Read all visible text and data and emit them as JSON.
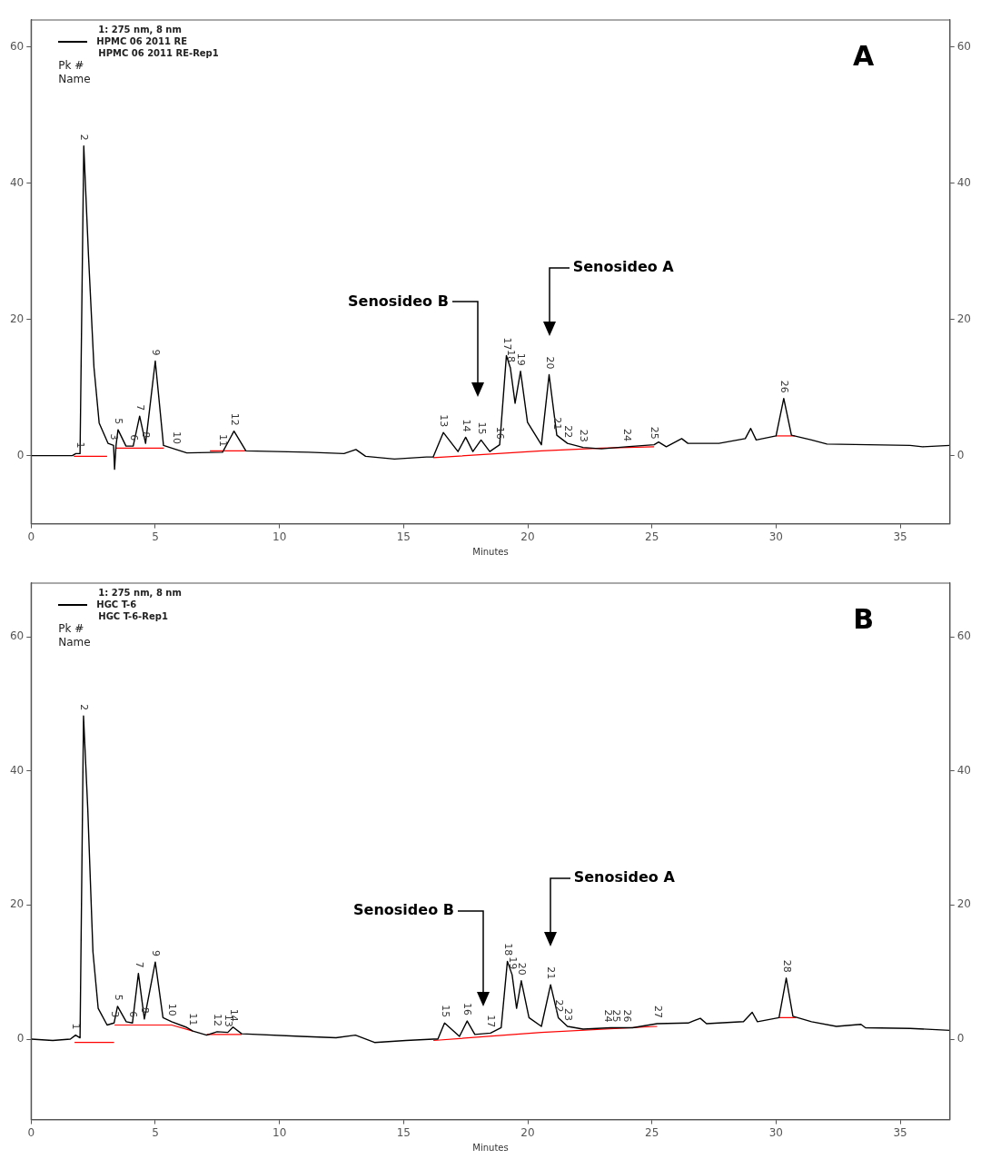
{
  "chart_data": [
    {
      "type": "line",
      "title": "A",
      "xlabel": "Minutes",
      "legend_title": "1: 275 nm, 8 nm",
      "legend": "top left",
      "grid": false,
      "marker": "none",
      "line_style": "solid",
      "xlim": [
        0,
        37
      ],
      "xticks": [
        0,
        5,
        10,
        15,
        20,
        25,
        30,
        35
      ],
      "ylim": [
        -10,
        64
      ],
      "yticks": [
        0,
        20,
        40,
        60
      ],
      "y2lim": [
        -10,
        64
      ],
      "y2ticks": [
        0,
        20,
        40,
        60
      ],
      "annotations": [
        "HPMC 06 2011 RE-Rep1",
        "Pk #",
        "Name",
        {
          "text": "1",
          "x": 1.97,
          "y": 0.3
        },
        {
          "text": "2",
          "x": 2.12,
          "y": 45.5
        },
        {
          "text": "3",
          "x": 3.32,
          "y": 1.5
        },
        {
          "text": "5",
          "x": 3.5,
          "y": 3.8
        },
        {
          "text": "6",
          "x": 4.11,
          "y": 1.4
        },
        {
          "text": "7",
          "x": 4.37,
          "y": 5.8
        },
        {
          "text": "8",
          "x": 4.61,
          "y": 1.8
        },
        {
          "text": "9",
          "x": 5.0,
          "y": 13.9
        },
        {
          "text": "10",
          "x": 5.84,
          "y": 0.9
        },
        {
          "text": "11",
          "x": 7.71,
          "y": 0.5
        },
        {
          "text": "12",
          "x": 8.17,
          "y": 3.6
        },
        {
          "text": "13",
          "x": 16.6,
          "y": 3.4
        },
        {
          "text": "14",
          "x": 17.5,
          "y": 2.7
        },
        {
          "text": "15",
          "x": 18.12,
          "y": 2.3
        },
        {
          "text": "16",
          "x": 18.87,
          "y": 1.6
        },
        {
          "text": "17",
          "x": 19.14,
          "y": 14.7
        },
        {
          "text": "18",
          "x": 19.3,
          "y": 12.9
        },
        {
          "text": "19",
          "x": 19.71,
          "y": 12.4
        },
        {
          "text": "20",
          "x": 20.86,
          "y": 11.9
        },
        {
          "text": "21",
          "x": 21.17,
          "y": 3.0
        },
        {
          "text": "22",
          "x": 21.6,
          "y": 1.8
        },
        {
          "text": "23",
          "x": 22.23,
          "y": 1.2
        },
        {
          "text": "24",
          "x": 23.97,
          "y": 1.3
        },
        {
          "text": "25",
          "x": 25.09,
          "y": 1.6
        },
        {
          "text": "26",
          "x": 30.31,
          "y": 8.4
        },
        "Senosideo B",
        "Senosideo A"
      ],
      "series": [
        {
          "name": "HPMC 06 2011 RE",
          "color": "#000000",
          "x": [
            0,
            1.66,
            1.8,
            1.97,
            2.12,
            2.31,
            2.53,
            2.74,
            3.1,
            3.32,
            3.36,
            3.42,
            3.5,
            3.82,
            4.11,
            4.37,
            4.61,
            5.0,
            5.33,
            5.84,
            6.27,
            7.71,
            8.17,
            8.65,
            11.17,
            12.6,
            13.08,
            13.47,
            14.63,
            15.92,
            16.19,
            16.6,
            17.19,
            17.5,
            17.79,
            18.12,
            18.47,
            18.87,
            19.14,
            19.3,
            19.49,
            19.71,
            19.99,
            20.55,
            20.86,
            21.17,
            21.6,
            22.23,
            22.97,
            23.97,
            25.09,
            25.27,
            25.58,
            26.2,
            26.45,
            27.7,
            28.76,
            28.98,
            29.2,
            30.0,
            30.31,
            30.62,
            31.43,
            32.05,
            35.4,
            35.9,
            37
          ],
          "values": [
            0,
            0,
            0.3,
            0.3,
            45.5,
            29.4,
            13.0,
            4.8,
            1.8,
            1.5,
            -2.0,
            1.5,
            3.8,
            1.4,
            1.4,
            5.8,
            1.8,
            13.9,
            1.5,
            0.9,
            0.4,
            0.5,
            3.6,
            0.7,
            0.5,
            0.3,
            0.9,
            -0.1,
            -0.5,
            -0.2,
            -0.2,
            3.4,
            0.6,
            2.7,
            0.6,
            2.3,
            0.6,
            1.6,
            14.7,
            12.9,
            7.7,
            12.4,
            4.9,
            1.6,
            11.9,
            3.0,
            1.8,
            1.2,
            1.0,
            1.3,
            1.6,
            2.0,
            1.3,
            2.5,
            1.8,
            1.8,
            2.5,
            4.0,
            2.3,
            2.9,
            8.4,
            3.0,
            2.3,
            1.7,
            1.5,
            1.3,
            1.5
          ]
        },
        {
          "color": "#ff0000",
          "x": [
            1.72,
            3.06
          ],
          "values": [
            -0.1,
            -0.1
          ]
        },
        {
          "color": "#ff0000",
          "x": [
            3.4,
            5.35
          ],
          "values": [
            1.1,
            1.1
          ]
        },
        {
          "color": "#ff0000",
          "x": [
            7.2,
            8.65
          ],
          "values": [
            0.7,
            0.7
          ]
        },
        {
          "color": "#ff0000",
          "x": [
            16.19,
            20.55,
            22.97,
            25.09
          ],
          "values": [
            -0.3,
            0.7,
            1.1,
            1.3
          ]
        },
        {
          "color": "#ff0000",
          "x": [
            29.98,
            30.76
          ],
          "values": [
            2.9,
            2.9
          ]
        }
      ]
    },
    {
      "type": "line",
      "title": "B",
      "xlabel": "Minutes",
      "legend_title": "1: 275 nm, 8 nm",
      "legend": "top left",
      "grid": false,
      "marker": "none",
      "line_style": "solid",
      "xlim": [
        0,
        37
      ],
      "xticks": [
        0,
        5,
        10,
        15,
        20,
        25,
        30,
        35
      ],
      "ylim": [
        -12,
        68
      ],
      "yticks": [
        0,
        20,
        40,
        60
      ],
      "y2lim": [
        -12,
        68
      ],
      "y2ticks": [
        0,
        20,
        40,
        60
      ],
      "annotations": [
        "HGC T-6-Rep1",
        "Pk #",
        "Name",
        {
          "text": "1",
          "x": 1.79,
          "y": 0.6
        },
        {
          "text": "2",
          "x": 2.11,
          "y": 48.2
        },
        {
          "text": "3",
          "x": 3.34,
          "y": 2.4
        },
        {
          "text": "5",
          "x": 3.48,
          "y": 4.9
        },
        {
          "text": "6",
          "x": 4.08,
          "y": 2.4
        },
        {
          "text": "7",
          "x": 4.32,
          "y": 9.8
        },
        {
          "text": "8",
          "x": 4.56,
          "y": 3.0
        },
        {
          "text": "9",
          "x": 5.0,
          "y": 11.5
        },
        {
          "text": "10",
          "x": 5.66,
          "y": 2.6
        },
        {
          "text": "11",
          "x": 6.51,
          "y": 1.2
        },
        {
          "text": "12",
          "x": 7.49,
          "y": 1.1
        },
        {
          "text": "13",
          "x": 7.92,
          "y": 1.0
        },
        {
          "text": "14",
          "x": 8.13,
          "y": 1.8
        },
        {
          "text": "15",
          "x": 16.65,
          "y": 2.4
        },
        {
          "text": "16",
          "x": 17.56,
          "y": 2.7
        },
        {
          "text": "17",
          "x": 18.5,
          "y": 0.9
        },
        {
          "text": "18",
          "x": 19.18,
          "y": 11.6
        },
        {
          "text": "19",
          "x": 19.37,
          "y": 9.6
        },
        {
          "text": "20",
          "x": 19.74,
          "y": 8.7
        },
        {
          "text": "21",
          "x": 20.92,
          "y": 8.1
        },
        {
          "text": "22",
          "x": 21.23,
          "y": 3.2
        },
        {
          "text": "23",
          "x": 21.6,
          "y": 1.9
        },
        {
          "text": "24",
          "x": 23.2,
          "y": 1.7
        },
        {
          "text": "25",
          "x": 23.55,
          "y": 1.7
        },
        {
          "text": "26",
          "x": 24.0,
          "y": 1.7
        },
        {
          "text": "27",
          "x": 25.21,
          "y": 2.3
        },
        {
          "text": "28",
          "x": 30.41,
          "y": 9.1
        },
        "Senosideo B",
        "Senosideo A"
      ],
      "series": [
        {
          "name": "HGC T-6",
          "color": "#000000",
          "x": [
            0,
            0.87,
            1.58,
            1.79,
            1.97,
            2.11,
            2.28,
            2.49,
            2.7,
            3.06,
            3.34,
            3.48,
            3.83,
            4.08,
            4.32,
            4.56,
            5.0,
            5.31,
            5.66,
            6.23,
            6.51,
            7.07,
            7.49,
            7.92,
            8.13,
            8.48,
            10.87,
            12.28,
            13.06,
            13.83,
            15.1,
            16.2,
            16.38,
            16.65,
            17.25,
            17.56,
            17.87,
            18.5,
            18.93,
            19.18,
            19.37,
            19.55,
            19.74,
            20.05,
            20.55,
            20.92,
            21.23,
            21.6,
            22.23,
            23.35,
            24.22,
            25.21,
            26.46,
            26.95,
            27.2,
            28.69,
            29.04,
            29.25,
            30.12,
            30.41,
            30.68,
            31.43,
            32.43,
            33.42,
            33.6,
            35.4,
            37
          ],
          "values": [
            0,
            -0.2,
            0,
            0.6,
            0.2,
            48.2,
            34.4,
            13.0,
            4.6,
            2.1,
            2.4,
            4.9,
            2.6,
            2.4,
            9.8,
            3.0,
            11.5,
            3.2,
            2.6,
            1.8,
            1.2,
            0.6,
            1.1,
            1.0,
            1.8,
            0.8,
            0.4,
            0.2,
            0.6,
            -0.5,
            -0.2,
            0,
            0,
            2.4,
            0.4,
            2.7,
            0.7,
            0.9,
            1.7,
            11.6,
            9.6,
            4.6,
            8.7,
            3.2,
            1.9,
            8.1,
            3.2,
            1.9,
            1.5,
            1.7,
            1.7,
            2.3,
            2.4,
            3.1,
            2.3,
            2.6,
            4.0,
            2.6,
            3.2,
            9.1,
            3.4,
            2.6,
            1.9,
            2.2,
            1.7,
            1.6,
            1.3
          ]
        },
        {
          "color": "#ff0000",
          "x": [
            1.75,
            3.34
          ],
          "values": [
            -0.5,
            -0.5
          ]
        },
        {
          "color": "#ff0000",
          "x": [
            3.36,
            5.66,
            6.51
          ],
          "values": [
            2.1,
            2.1,
            1.2
          ]
        },
        {
          "color": "#ff0000",
          "x": [
            7.07,
            8.48
          ],
          "values": [
            0.7,
            0.7
          ]
        },
        {
          "color": "#ff0000",
          "x": [
            16.2,
            20.55,
            25.21
          ],
          "values": [
            -0.2,
            1.0,
            1.9
          ]
        },
        {
          "color": "#ff0000",
          "x": [
            30.12,
            30.8
          ],
          "values": [
            3.2,
            3.2
          ]
        }
      ]
    }
  ]
}
